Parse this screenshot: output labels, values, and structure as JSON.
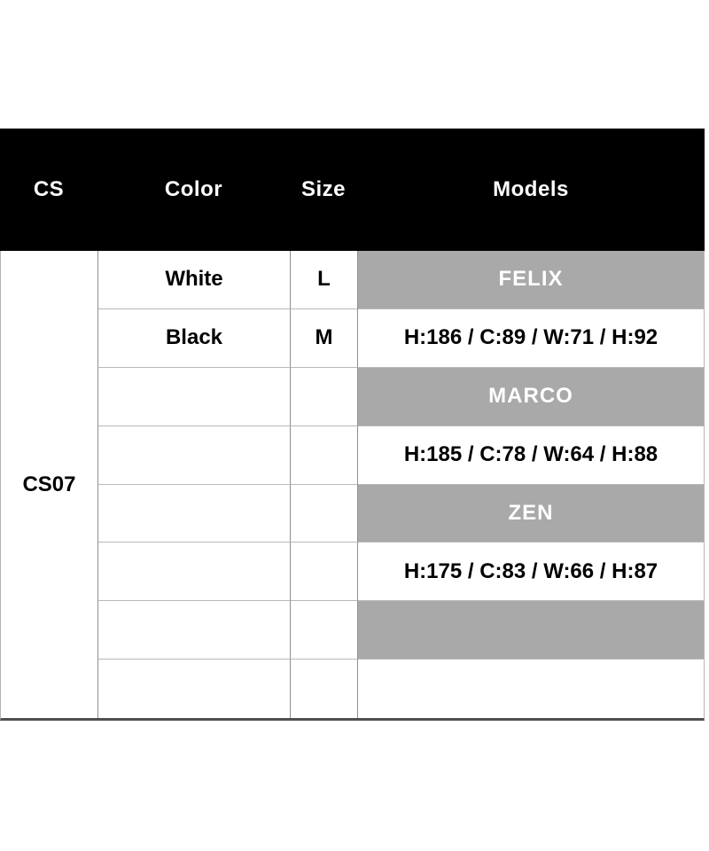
{
  "size_chart": {
    "header": {
      "cs": "CS",
      "color": "Color",
      "size": "Size",
      "models": "Models"
    },
    "cs_value": "CS07",
    "rows": [
      {
        "color": "White",
        "size": "L",
        "model": "FELIX"
      },
      {
        "color": "Black",
        "size": "M",
        "model": "H:186 / C:89 / W:71 / H:92"
      },
      {
        "color": "",
        "size": "",
        "model": "MARCO"
      },
      {
        "color": "",
        "size": "",
        "model": "H:185 / C:78 / W:64 / H:88"
      },
      {
        "color": "",
        "size": "",
        "model": "ZEN"
      },
      {
        "color": "",
        "size": "",
        "model": "H:175 / C:83 / W:66 / H:87"
      },
      {
        "color": "",
        "size": "",
        "model": ""
      },
      {
        "color": "",
        "size": "",
        "model": ""
      }
    ],
    "colors": {
      "header_bg": "#000000",
      "header_text": "#ffffff",
      "model_name_bg": "#a9a9a9",
      "model_name_text": "#ffffff",
      "body_text": "#000000",
      "grid_line": "#b9b9b9",
      "column_line": "#8f8f8f",
      "bottom_border": "#4f4f4f"
    }
  }
}
